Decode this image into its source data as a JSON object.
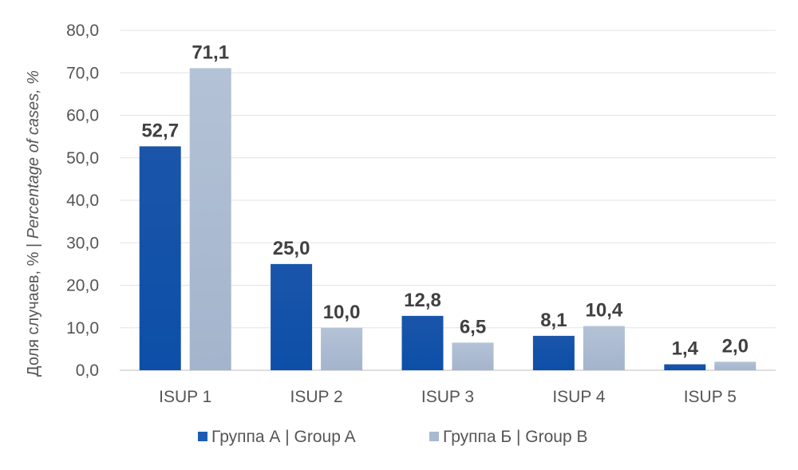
{
  "chart_data": {
    "type": "bar",
    "categories": [
      "ISUP 1",
      "ISUP 2",
      "ISUP 3",
      "ISUP 4",
      "ISUP 5"
    ],
    "series": [
      {
        "name": "Группа А | Group A",
        "values": [
          52.7,
          25.0,
          12.8,
          8.1,
          1.4
        ],
        "labels": [
          "52,7",
          "25,0",
          "12,8",
          "8,1",
          "1,4"
        ],
        "color": "#1c5db3"
      },
      {
        "name": "Группа Б | Group B",
        "values": [
          71.1,
          10.0,
          6.5,
          10.4,
          2.0
        ],
        "labels": [
          "71,1",
          "10,0",
          "6,5",
          "10,4",
          "2,0"
        ],
        "color": "#a9b9cf"
      }
    ],
    "ylabel_plain": "Доля случаев, % | ",
    "ylabel_italic": "Percentage of cases, %",
    "ylim": [
      0,
      80
    ],
    "yticks": [
      "0,0",
      "10,0",
      "20,0",
      "30,0",
      "40,0",
      "50,0",
      "60,0",
      "70,0",
      "80,0"
    ],
    "grid": true,
    "legend_position": "bottom"
  }
}
